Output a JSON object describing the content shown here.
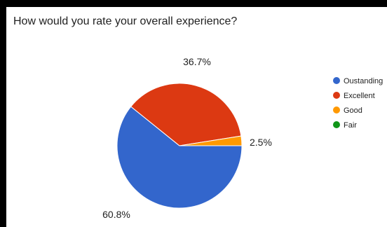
{
  "chart_data": {
    "type": "pie",
    "title": "How would you rate your overall experience?",
    "slices": [
      {
        "label": "Oustanding",
        "value": 60.8,
        "display": "60.8%",
        "color": "#3366cc"
      },
      {
        "label": "Excellent",
        "value": 36.7,
        "display": "36.7%",
        "color": "#dc3912"
      },
      {
        "label": "Good",
        "value": 2.5,
        "display": "2.5%",
        "color": "#ff9900"
      },
      {
        "label": "Fair",
        "value": 0,
        "display": "",
        "color": "#109618"
      }
    ],
    "legend_position": "right"
  }
}
